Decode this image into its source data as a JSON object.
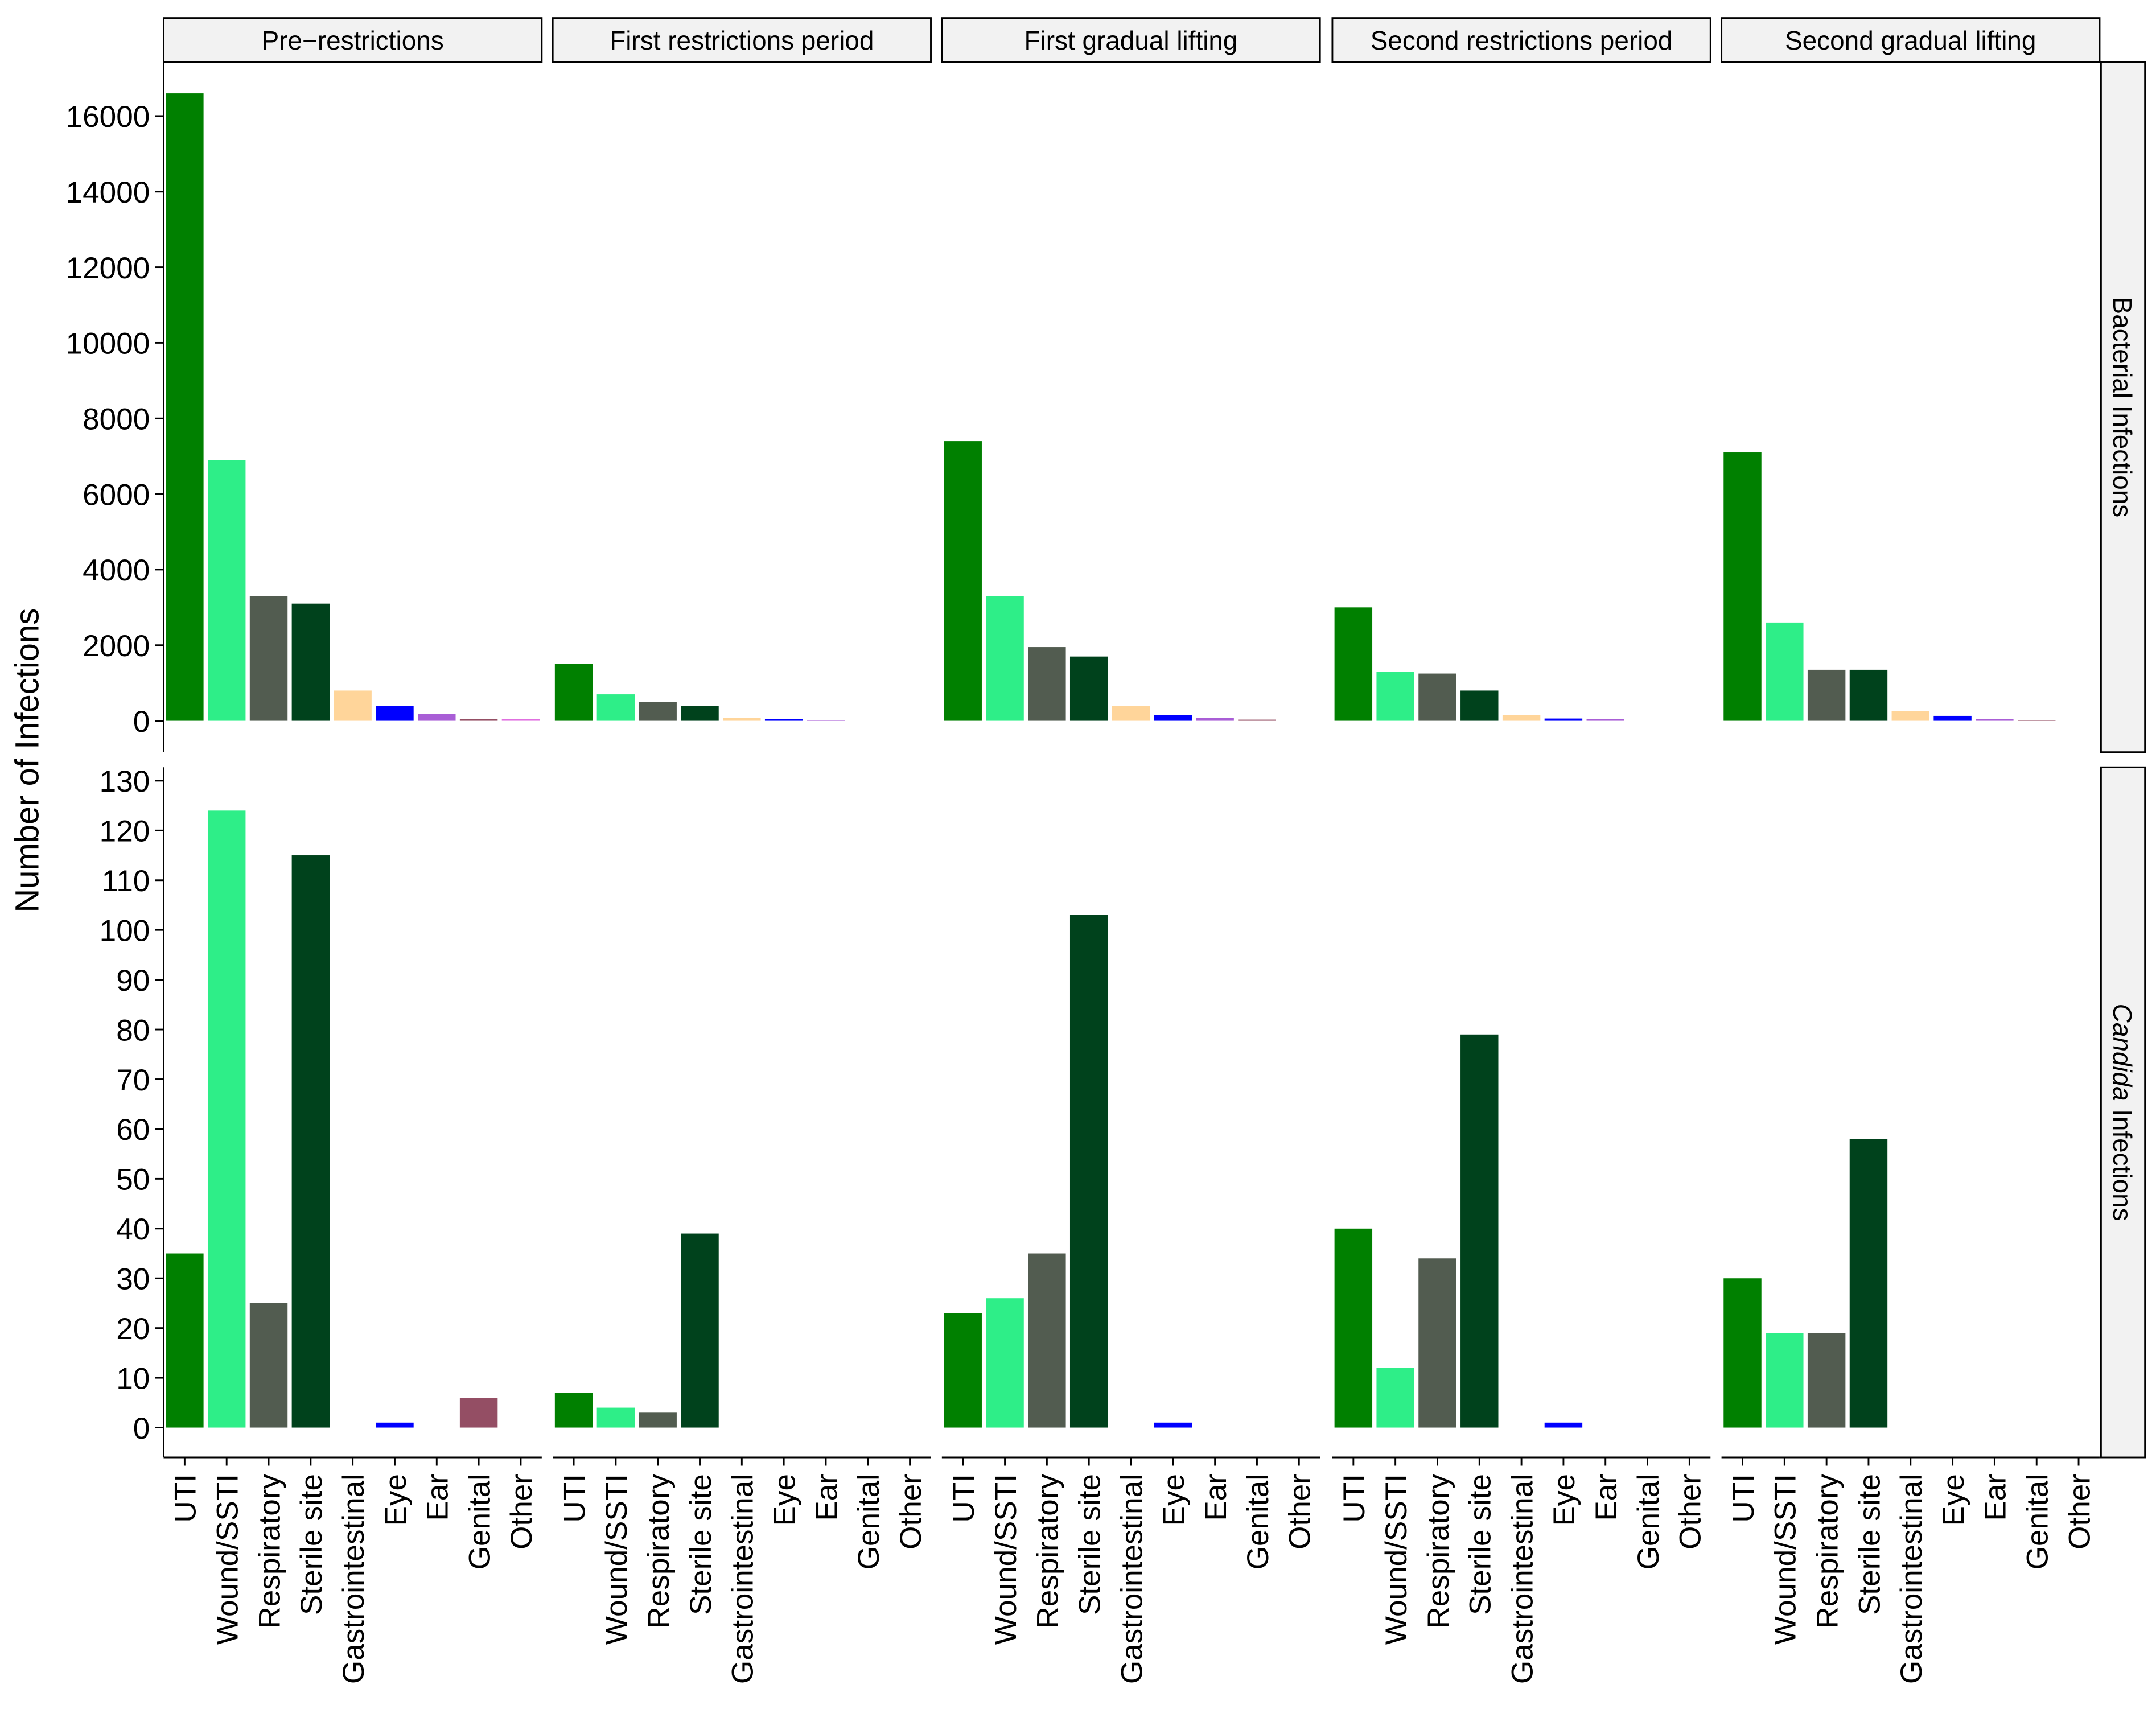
{
  "chart_data": {
    "type": "bar",
    "ylabel": "Number of Infections",
    "categories": [
      "UTI",
      "Wound/SSTI",
      "Respiratory",
      "Sterile site",
      "Gastrointestinal",
      "Eye",
      "Ear",
      "Genital",
      "Other"
    ],
    "colors": [
      "#008000",
      "#2eee88",
      "#525c50",
      "#00421c",
      "#ffd59a",
      "#0000ff",
      "#a95ed6",
      "#944e64",
      "#e070e0"
    ],
    "columns": [
      "Pre−restrictions",
      "First restrictions period",
      "First gradual lifting",
      "Second restrictions period",
      "Second gradual lifting"
    ],
    "rows": [
      {
        "label_parts": [
          {
            "text": "Bacterial Infections",
            "italic": false
          }
        ],
        "ylim": [
          -830,
          17430
        ],
        "yticks": [
          0,
          2000,
          4000,
          6000,
          8000,
          10000,
          12000,
          14000,
          16000
        ],
        "panels": [
          [
            16600,
            6900,
            3300,
            3100,
            800,
            400,
            180,
            50,
            50
          ],
          [
            1500,
            700,
            500,
            400,
            80,
            50,
            20,
            0,
            0
          ],
          [
            7400,
            3300,
            1950,
            1700,
            400,
            150,
            70,
            30,
            0
          ],
          [
            3000,
            1300,
            1250,
            800,
            150,
            60,
            40,
            0,
            0
          ],
          [
            7100,
            2600,
            1350,
            1350,
            250,
            130,
            50,
            20,
            0
          ]
        ]
      },
      {
        "label_parts": [
          {
            "text": "Candida",
            "italic": true
          },
          {
            "text": "Infections",
            "italic": false
          }
        ],
        "ylim": [
          -6,
          132.7
        ],
        "yticks": [
          0,
          10,
          20,
          30,
          40,
          50,
          60,
          70,
          80,
          90,
          100,
          110,
          120,
          130
        ],
        "panels": [
          [
            35,
            124,
            25,
            115,
            0,
            1,
            0,
            6,
            0
          ],
          [
            7,
            4,
            3,
            39,
            0,
            0,
            0,
            0,
            0
          ],
          [
            23,
            26,
            35,
            103,
            0,
            1,
            0,
            0,
            0
          ],
          [
            40,
            12,
            34,
            79,
            0,
            1,
            0,
            0,
            0
          ],
          [
            30,
            19,
            19,
            58,
            0,
            0,
            0,
            0,
            0
          ]
        ]
      }
    ]
  }
}
